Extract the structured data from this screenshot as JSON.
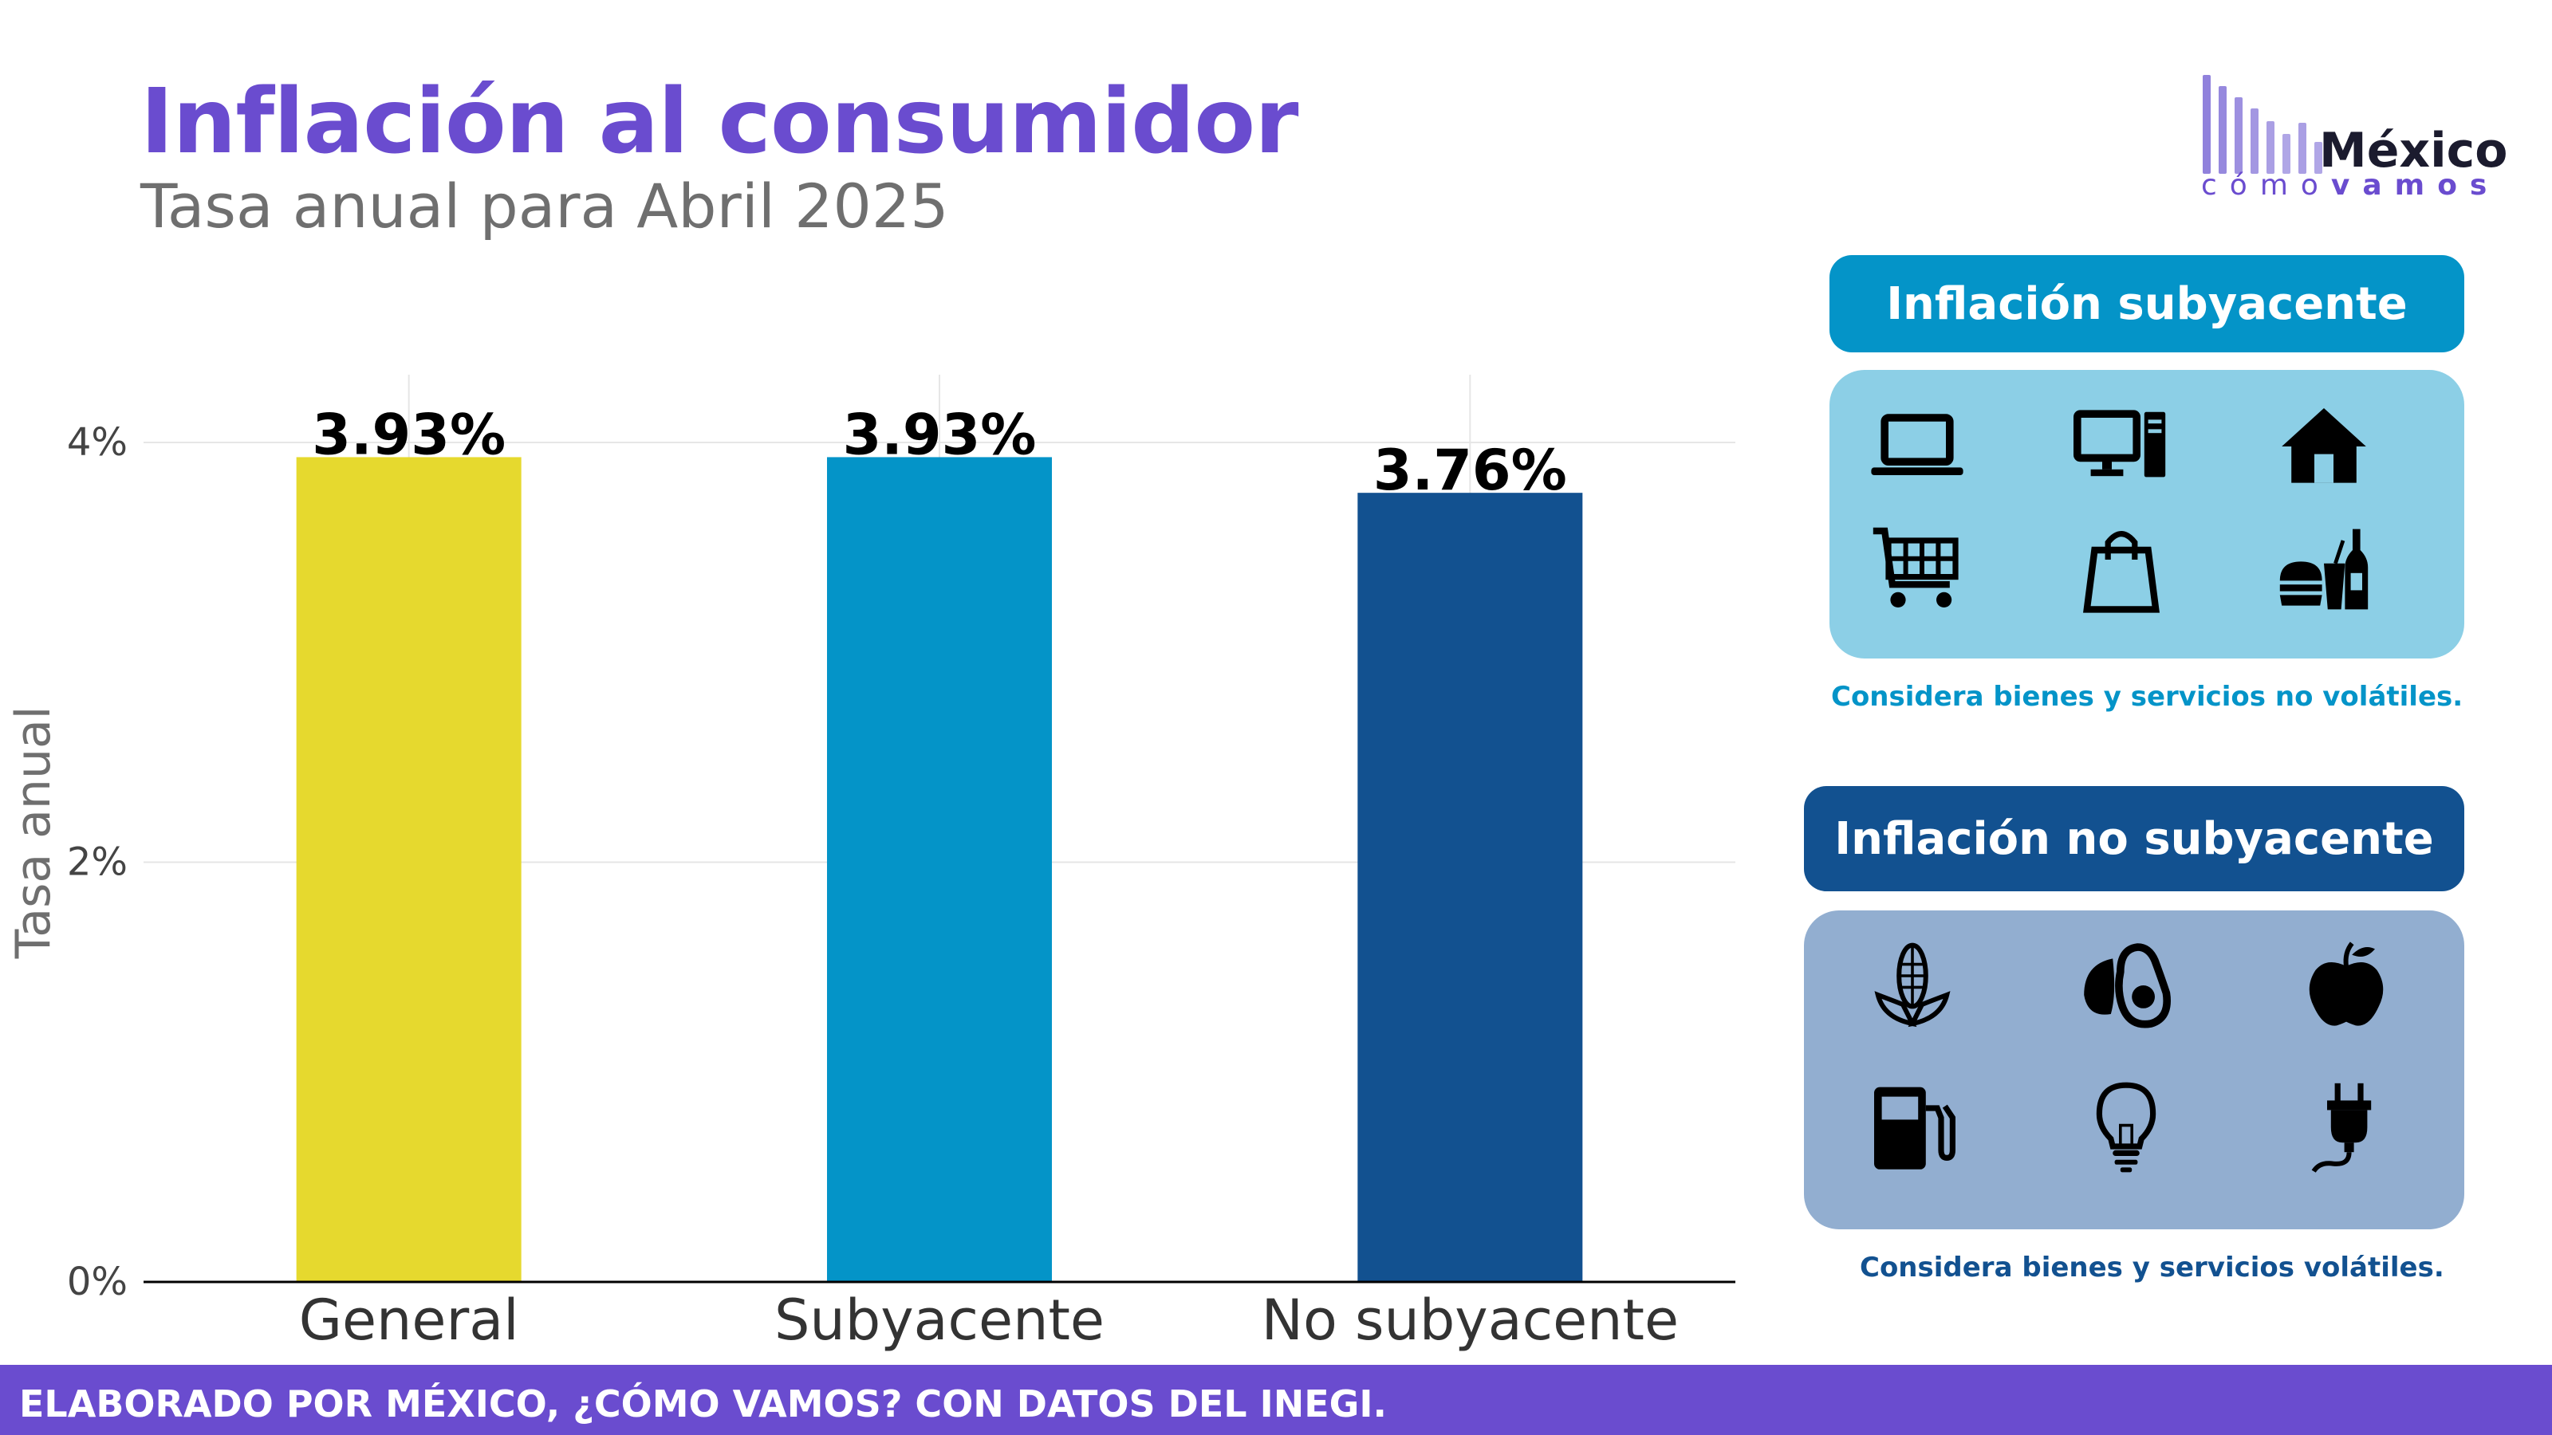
{
  "header": {
    "title": "Inflación al consumidor",
    "subtitle": "Tasa anual para Abril 2025"
  },
  "logo": {
    "name": "México",
    "tagline_light": "cómo",
    "tagline_bold": "vamos"
  },
  "chart_data": {
    "type": "bar",
    "categories": [
      "General",
      "Subyacente",
      "No subyacente"
    ],
    "values": [
      3.93,
      3.93,
      3.76
    ],
    "data_labels": [
      "3.93%",
      "3.93%",
      "3.76%"
    ],
    "colors": [
      "#e6d92e",
      "#0494c8",
      "#125190"
    ],
    "ylabel": "Tasa anual",
    "ylim": [
      0,
      4.1
    ],
    "yticks": [
      0,
      2,
      4
    ],
    "ytick_labels": [
      "0%",
      "2%",
      "4%"
    ],
    "grid": true
  },
  "panels": {
    "core": {
      "label": "Inflación subyacente",
      "note": "Considera bienes y servicios no volátiles.",
      "accent": "#0494c8",
      "background": "#8ccfe6",
      "icons": [
        "laptop-icon",
        "desktop-computer-icon",
        "house-icon",
        "shopping-cart-icon",
        "shopping-bag-icon",
        "fast-food-icon"
      ]
    },
    "noncore": {
      "label": "Inflación no subyacente",
      "note": "Considera bienes y servicios volátiles.",
      "accent": "#125190",
      "background": "#92aed0",
      "icons": [
        "corn-icon",
        "avocado-icon",
        "apple-icon",
        "fuel-pump-icon",
        "light-bulb-icon",
        "electric-plug-icon"
      ]
    }
  },
  "footer": {
    "source": "ELABORADO POR MÉXICO, ¿CÓMO VAMOS? CON DATOS DEL INEGI."
  }
}
